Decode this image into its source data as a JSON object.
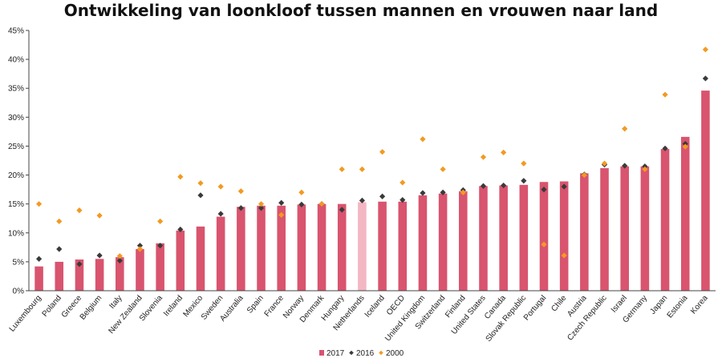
{
  "chart_data": {
    "type": "bar",
    "title": "Ontwikkeling van loonkloof tussen mannen en vrouwen naar land",
    "xlabel": "",
    "ylabel": "",
    "ylim": [
      0,
      45
    ],
    "yticks": [
      "0%",
      "5%",
      "10%",
      "15%",
      "20%",
      "25%",
      "30%",
      "35%",
      "40%",
      "45%"
    ],
    "grid": false,
    "legend_position": "bottom",
    "categories": [
      "Luxembourg",
      "Poland",
      "Greece",
      "Belgium",
      "Italy",
      "New Zealand",
      "Slovenia",
      "Ireland",
      "Mexico",
      "Sweden",
      "Australia",
      "Spain",
      "France",
      "Norway",
      "Denmark",
      "Hungary",
      "Netherlands",
      "Iceland",
      "OECD",
      "United Kingdom",
      "Switzerland",
      "Finland",
      "United States",
      "Canada",
      "Slovak Republic",
      "Portugal",
      "Chile",
      "Austria",
      "Czech Republic",
      "Israel",
      "Germany",
      "Japan",
      "Estonia",
      "Korea"
    ],
    "highlight_category": "Netherlands",
    "series": [
      {
        "name": "2017",
        "type": "bar",
        "color": "#d9546e",
        "values": [
          4.2,
          5.0,
          5.4,
          5.5,
          5.8,
          7.2,
          8.2,
          10.4,
          11.1,
          12.8,
          14.5,
          14.7,
          14.7,
          14.9,
          15.0,
          15.0,
          15.3,
          15.4,
          15.4,
          16.5,
          16.8,
          17.2,
          18.1,
          18.2,
          18.3,
          18.8,
          18.9,
          20.3,
          21.2,
          21.5,
          21.5,
          24.5,
          26.6,
          34.6
        ]
      },
      {
        "name": "2016",
        "type": "marker",
        "color": "#3a3a3a",
        "values": [
          5.5,
          7.2,
          4.6,
          6.1,
          5.2,
          7.8,
          7.8,
          10.6,
          16.5,
          13.3,
          14.3,
          14.3,
          15.2,
          14.9,
          15.0,
          14.0,
          15.6,
          16.3,
          15.7,
          16.9,
          17.0,
          17.4,
          18.1,
          18.2,
          19.0,
          17.5,
          18.0,
          20.1,
          21.8,
          21.6,
          21.5,
          24.6,
          25.4,
          36.7
        ]
      },
      {
        "name": "2000",
        "type": "marker",
        "color": "#f29a22",
        "values": [
          15.0,
          12.0,
          13.9,
          13.0,
          6.0,
          7.2,
          12.0,
          19.7,
          18.6,
          18.0,
          17.2,
          15.0,
          13.1,
          17.0,
          15.0,
          21.0,
          21.0,
          24.0,
          18.7,
          26.2,
          21.0,
          17.0,
          23.1,
          23.9,
          22.0,
          8.0,
          6.1,
          20.0,
          22.0,
          28.0,
          21.0,
          33.9,
          24.9,
          41.7
        ]
      }
    ],
    "colors": {
      "bar": "#d9546e",
      "bar_highlight": "#f3b6c3",
      "marker_2016": "#3a3a3a",
      "marker_2000": "#f29a22",
      "axis": "#444444"
    }
  }
}
